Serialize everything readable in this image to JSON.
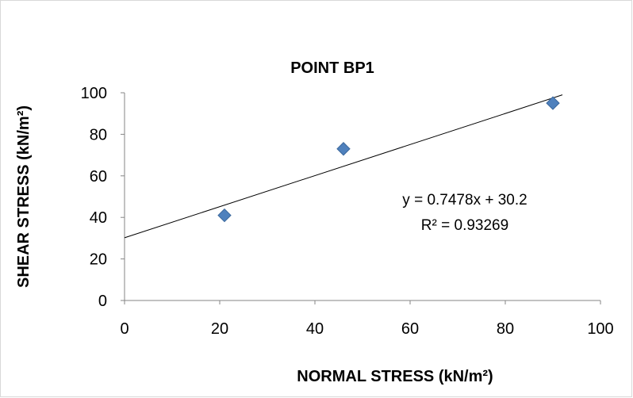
{
  "chart_data": {
    "type": "scatter",
    "title": "POINT BP1",
    "xlabel": "NORMAL STRESS (kN/m²)",
    "ylabel": "SHEAR STRESS (kN/m²)",
    "xlim": [
      0,
      100
    ],
    "ylim": [
      0,
      100
    ],
    "x_ticks": [
      0,
      20,
      40,
      60,
      80,
      100
    ],
    "y_ticks": [
      0,
      20,
      40,
      60,
      80,
      100
    ],
    "grid": false,
    "legend": "none",
    "series": [
      {
        "x": [
          21,
          46,
          90
        ],
        "y": [
          41,
          73,
          95
        ],
        "marker": "diamond",
        "color": "#4f81bd"
      }
    ],
    "trendline": {
      "type": "linear",
      "slope": 0.7478,
      "intercept": 30.2,
      "color": "#000000",
      "equation_text": "y = 0.7478x + 30.2",
      "r2_text": "R² = 0.93269"
    }
  }
}
